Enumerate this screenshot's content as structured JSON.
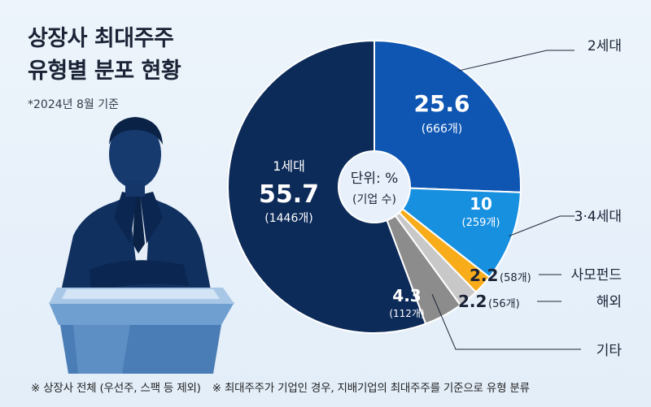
{
  "title_line1": "상장사 최대주주",
  "title_line2": "유형별 분포 현황",
  "subtitle": "*2024년 8월 기준",
  "center_unit": "단위: %",
  "center_sub": "(기업 수)",
  "footnotes": [
    "※ 상장사 전체 (우선주, 스팩 등 제외)",
    "※ 최대주주가 기업인 경우, 지배기업의 최대주주를 기준으로 유형 분류"
  ],
  "colors": {
    "gen1": "#0d2b59",
    "gen2": "#0f56b3",
    "gen34": "#1890e0",
    "fund": "#f8ac1a",
    "overseas": "#c8c8c8",
    "other": "#8c8c8c"
  },
  "chart_data": {
    "type": "pie",
    "title": "상장사 최대주주 유형별 분포 현황",
    "unit": "%",
    "slices": [
      {
        "label": "2세대",
        "value": 25.6,
        "value_text": "25.6",
        "count": "(666개)",
        "color": "#0f56b3"
      },
      {
        "label": "3·4세대",
        "value": 10,
        "value_text": "10",
        "count": "(259개)",
        "color": "#1890e0"
      },
      {
        "label": "사모펀드",
        "value": 2.2,
        "value_text": "2.2",
        "count": "(58개)",
        "color": "#f8ac1a"
      },
      {
        "label": "해외",
        "value": 2.2,
        "value_text": "2.2",
        "count": "(56개)",
        "color": "#c8c8c8"
      },
      {
        "label": "기타",
        "value": 4.3,
        "value_text": "4.3",
        "count": "(112개)",
        "color": "#8c8c8c"
      },
      {
        "label": "1세대",
        "value": 55.7,
        "value_text": "55.7",
        "count": "(1446개)",
        "color": "#0d2b59"
      }
    ]
  }
}
